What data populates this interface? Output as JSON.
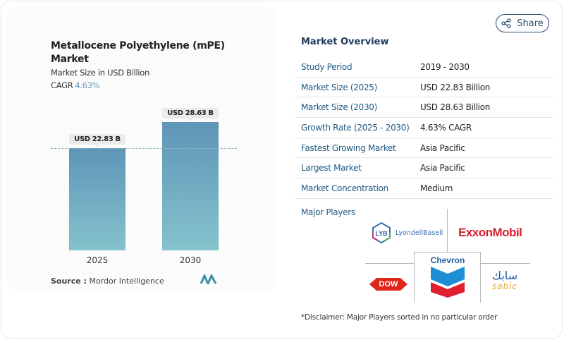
{
  "share_label": "Share",
  "chart": {
    "title": "Metallocene Polyethylene (mPE) Market",
    "subtitle": "Market Size in USD Billion",
    "cagr_label": "CAGR",
    "cagr_value": "4.63%",
    "source_label": "Source :",
    "source_value": "Mordor Intelligence"
  },
  "chart_data": {
    "type": "bar",
    "categories": [
      "2025",
      "2030"
    ],
    "values": [
      22.83,
      28.63
    ],
    "data_labels": [
      "USD 22.83 B",
      "USD 28.63 B"
    ],
    "ylabel": "Market Size in USD Billion",
    "colors": [
      "#5f95b8",
      "#84c2cc"
    ]
  },
  "overview": {
    "title": "Market Overview",
    "rows": [
      {
        "key": "Study Period",
        "value": "2019 - 2030"
      },
      {
        "key": "Market Size (2025)",
        "value": "USD 22.83 Billion"
      },
      {
        "key": "Market Size (2030)",
        "value": "USD 28.63 Billion"
      },
      {
        "key": "Growth Rate (2025 - 2030)",
        "value": "4.63% CAGR"
      },
      {
        "key": "Fastest Growing Market",
        "value": "Asia Pacific"
      },
      {
        "key": "Largest Market",
        "value": "Asia Pacific"
      },
      {
        "key": "Market Concentration",
        "value": "Medium"
      }
    ],
    "major_players_label": "Major Players",
    "players": [
      "LyondellBasell",
      "ExxonMobil",
      "Chevron",
      "Dow",
      "SABIC"
    ],
    "disclaimer": "*Disclaimer: Major Players sorted in no particular order"
  }
}
